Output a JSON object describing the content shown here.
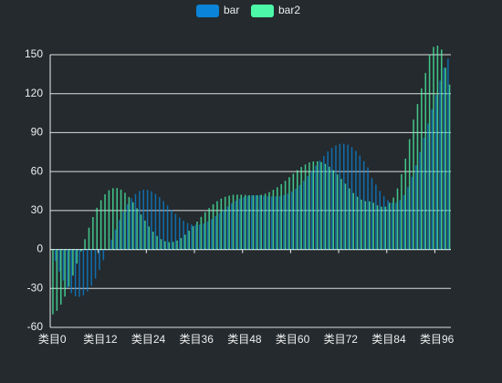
{
  "chart_data": {
    "type": "bar",
    "categories": [
      "类目0",
      null,
      null,
      null,
      null,
      null,
      null,
      null,
      null,
      null,
      null,
      null,
      "类目12",
      null,
      null,
      null,
      null,
      null,
      null,
      null,
      null,
      null,
      null,
      null,
      "类目24",
      null,
      null,
      null,
      null,
      null,
      null,
      null,
      null,
      null,
      null,
      null,
      "类目36",
      null,
      null,
      null,
      null,
      null,
      null,
      null,
      null,
      null,
      null,
      null,
      "类目48",
      null,
      null,
      null,
      null,
      null,
      null,
      null,
      null,
      null,
      null,
      null,
      "类目60",
      null,
      null,
      null,
      null,
      null,
      null,
      null,
      null,
      null,
      null,
      null,
      "类目72",
      null,
      null,
      null,
      null,
      null,
      null,
      null,
      null,
      null,
      null,
      null,
      "类目84",
      null,
      null,
      null,
      null,
      null,
      null,
      null,
      null,
      null,
      null,
      null,
      "类目96",
      null,
      null,
      null
    ],
    "series": [
      {
        "name": "bar",
        "color": "#0a84d8",
        "values": [
          0,
          -8.9,
          -17,
          -24,
          -29.6,
          -33.7,
          -36,
          -36.5,
          -35.3,
          -32.4,
          -28,
          -22.4,
          -15.7,
          -8.3,
          -0.4,
          7.6,
          15.3,
          22.6,
          29.2,
          34.8,
          39.4,
          42.8,
          45,
          46,
          45.9,
          44.8,
          42.8,
          40.3,
          37.2,
          33.9,
          30.6,
          27.4,
          24.6,
          22.2,
          20.4,
          19.3,
          18.9,
          19.1,
          20,
          21.5,
          23.4,
          25.7,
          28.2,
          30.7,
          33.1,
          35.4,
          37.4,
          39.1,
          40.3,
          41.2,
          41.7,
          41.8,
          41.7,
          41.4,
          41.1,
          40.8,
          40.8,
          41.1,
          41.8,
          43,
          44.6,
          46.9,
          49.7,
          52.9,
          56.6,
          60.5,
          64.5,
          68.4,
          72.1,
          75.5,
          78.2,
          80.1,
          81.3,
          81.5,
          80.7,
          78.8,
          76,
          72.4,
          68,
          63.2,
          55,
          50,
          45,
          41,
          38,
          36,
          36,
          38,
          42,
          48,
          56,
          65,
          75,
          86,
          97,
          108,
          119,
          130,
          140,
          147
        ]
      },
      {
        "name": "bar2",
        "color": "#4cf8a8",
        "values": [
          -50,
          -47.2,
          -42.5,
          -36.3,
          -28.7,
          -20.1,
          -10.9,
          -1.5,
          7.9,
          16.8,
          25,
          32.1,
          38,
          42.5,
          45.6,
          47.2,
          47.3,
          46.1,
          43.7,
          40.4,
          36.3,
          31.7,
          26.9,
          22.2,
          17.7,
          13.7,
          10.4,
          7.9,
          6.3,
          5.6,
          5.8,
          6.9,
          8.8,
          11.4,
          14.4,
          17.9,
          21.5,
          25.1,
          28.7,
          31.9,
          34.8,
          37.2,
          39.2,
          40.6,
          41.5,
          42.1,
          42.2,
          42.2,
          42,
          41.8,
          41.7,
          41.8,
          42.2,
          43,
          44.2,
          45.9,
          47.9,
          50.3,
          52.9,
          55.7,
          58.4,
          61.1,
          63.5,
          65.5,
          67,
          67.8,
          67.9,
          67.3,
          65.9,
          63.7,
          61.1,
          57.8,
          54.3,
          50.7,
          47,
          43.5,
          40.7,
          38.4,
          37.2,
          37,
          36,
          34,
          33,
          33,
          36,
          40,
          47,
          58,
          70,
          85,
          100,
          112,
          124,
          136,
          150,
          156,
          157,
          154,
          140,
          127
        ]
      }
    ],
    "ylim": [
      -60,
      150
    ],
    "yticks": [
      -60,
      -30,
      0,
      30,
      60,
      90,
      120,
      150
    ],
    "grid": true
  }
}
